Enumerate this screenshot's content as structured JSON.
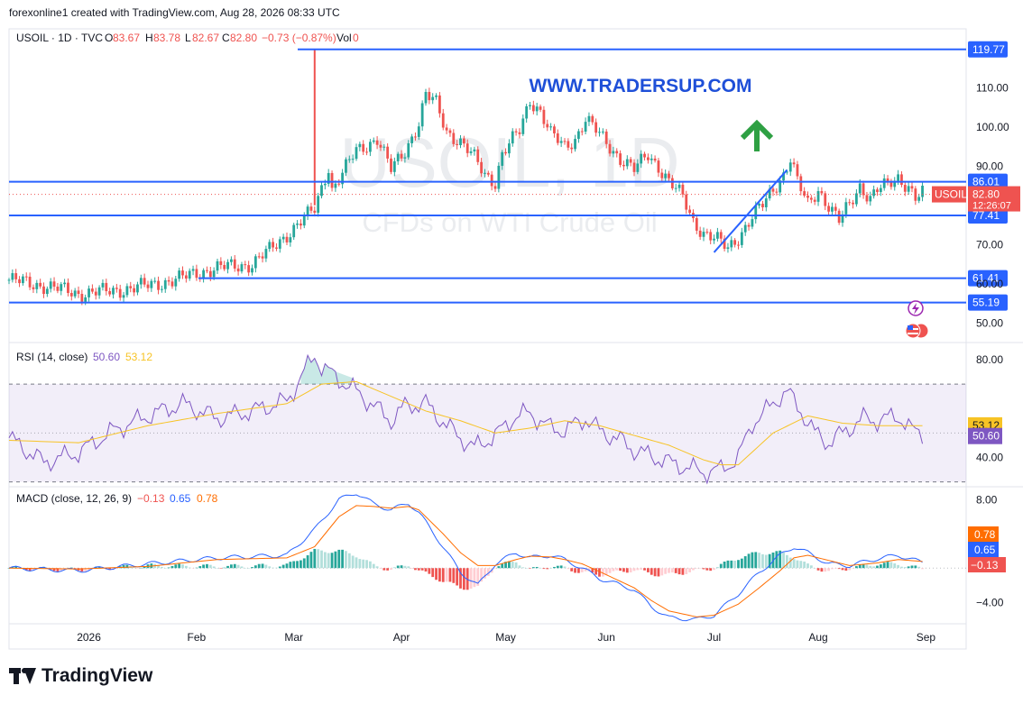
{
  "header": {
    "text": "forexonline1 created with TradingView.com, Aug 28, 2026 08:33 UTC"
  },
  "legend": {
    "symbol": "USOIL · 1D · TVC",
    "o_label": "O",
    "o": "83.67",
    "h_label": "H",
    "h": "83.78",
    "l_label": "L",
    "l": "82.67",
    "c_label": "C",
    "c": "82.80",
    "change": "−0.73 (−0.87%)",
    "vol_label": "Vol",
    "vol": "0"
  },
  "watermark": {
    "symbol": "USOIL, 1D",
    "description": "CFDs on WTI Crude Oil"
  },
  "annotation": {
    "text": "WWW.TRADERSUP.COM"
  },
  "colors": {
    "up": "#26a69a",
    "down": "#ef5350",
    "line": "#2962ff",
    "annotation": "#1e4fd8",
    "arrow": "#2ea043",
    "rsi": "#7e57c2",
    "rsi_ma": "#f7c325",
    "macd": "#2962ff",
    "signal": "#ff6d00"
  },
  "chart_data": [
    {
      "type": "candlestick",
      "title": "USOIL · 1D · TVC",
      "ylim": [
        45,
        125
      ],
      "y_ticks": [
        "110.00",
        "100.00",
        "90.00",
        "70.00",
        "60.00",
        "50.00"
      ],
      "x_ticks": [
        "2026",
        "Feb",
        "Mar",
        "Apr",
        "May",
        "Jun",
        "Jul",
        "Aug",
        "Sep"
      ],
      "close_path": [
        [
          0,
          61
        ],
        [
          10,
          59.5
        ],
        [
          20,
          57.5
        ],
        [
          30,
          58.2
        ],
        [
          40,
          59.5
        ],
        [
          50,
          61.5
        ],
        [
          55,
          63
        ],
        [
          60,
          64
        ],
        [
          70,
          65
        ],
        [
          75,
          68.5
        ],
        [
          88,
          79
        ],
        [
          92,
          90
        ],
        [
          93,
          84
        ],
        [
          96,
          88
        ],
        [
          100,
          94
        ],
        [
          106,
          97
        ],
        [
          110,
          89
        ],
        [
          114,
          94
        ],
        [
          118,
          101
        ],
        [
          120,
          108
        ],
        [
          123,
          106
        ],
        [
          126,
          99
        ],
        [
          130,
          96
        ],
        [
          134,
          92
        ],
        [
          137,
          88
        ],
        [
          140,
          86
        ],
        [
          142,
          93
        ],
        [
          147,
          99
        ],
        [
          150,
          107
        ],
        [
          153,
          104
        ],
        [
          156,
          98
        ],
        [
          160,
          95
        ],
        [
          163,
          97
        ],
        [
          166,
          102
        ],
        [
          170,
          98
        ],
        [
          173,
          95
        ],
        [
          176,
          92
        ],
        [
          180,
          89
        ],
        [
          184,
          93
        ],
        [
          187,
          90
        ],
        [
          190,
          86
        ],
        [
          194,
          82
        ],
        [
          197,
          76
        ],
        [
          200,
          73
        ],
        [
          204,
          71
        ],
        [
          207,
          69
        ],
        [
          210,
          72
        ],
        [
          214,
          77
        ],
        [
          217,
          80
        ],
        [
          220,
          84
        ],
        [
          223,
          88
        ],
        [
          225,
          92
        ],
        [
          227,
          86
        ],
        [
          230,
          80
        ],
        [
          233,
          84
        ],
        [
          236,
          80
        ],
        [
          239,
          76
        ],
        [
          242,
          80
        ],
        [
          245,
          85
        ],
        [
          248,
          82
        ],
        [
          250,
          84
        ],
        [
          253,
          85
        ],
        [
          256,
          87
        ],
        [
          259,
          85
        ],
        [
          261,
          82
        ],
        [
          263,
          83
        ]
      ],
      "last_price": "82.80",
      "countdown": "12:26:07",
      "symbol_label": "USOIL",
      "horizontal_levels": [
        {
          "price": 119.77,
          "label": "119.77"
        },
        {
          "price": 86.01,
          "label": "86.01"
        },
        {
          "price": 77.41,
          "label": "77.41"
        },
        {
          "price": 61.41,
          "label": "61.41"
        },
        {
          "price": 55.19,
          "label": "55.19"
        }
      ],
      "trendline": {
        "from": [
          203,
          68
        ],
        "to": [
          224,
          89
        ]
      }
    },
    {
      "type": "line",
      "title": "RSI (14, close)",
      "ylim": [
        28,
        87
      ],
      "y_ticks": [
        "80.00",
        "40.00"
      ],
      "bands": [
        30,
        50,
        70
      ],
      "series": [
        {
          "name": "RSI",
          "value_label": "50.60",
          "points": [
            [
              0,
              48
            ],
            [
              10,
              38
            ],
            [
              20,
              42
            ],
            [
              30,
              51
            ],
            [
              40,
              57
            ],
            [
              50,
              62
            ],
            [
              60,
              56
            ],
            [
              70,
              59
            ],
            [
              80,
              63
            ],
            [
              88,
              82
            ],
            [
              90,
              77
            ],
            [
              96,
              71
            ],
            [
              100,
              67
            ],
            [
              106,
              60
            ],
            [
              110,
              55
            ],
            [
              114,
              61
            ],
            [
              120,
              62
            ],
            [
              126,
              53
            ],
            [
              130,
              48
            ],
            [
              134,
              44
            ],
            [
              140,
              49
            ],
            [
              146,
              57
            ],
            [
              150,
              58
            ],
            [
              156,
              52
            ],
            [
              160,
              51
            ],
            [
              166,
              56
            ],
            [
              170,
              51
            ],
            [
              176,
              47
            ],
            [
              180,
              43
            ],
            [
              186,
              40
            ],
            [
              190,
              38
            ],
            [
              195,
              36
            ],
            [
              200,
              34
            ],
            [
              205,
              35
            ],
            [
              210,
              40
            ],
            [
              214,
              54
            ],
            [
              218,
              59
            ],
            [
              222,
              65
            ],
            [
              224,
              67
            ],
            [
              228,
              59
            ],
            [
              232,
              50
            ],
            [
              236,
              46
            ],
            [
              242,
              52
            ],
            [
              246,
              56
            ],
            [
              250,
              55
            ],
            [
              256,
              57
            ],
            [
              260,
              51
            ],
            [
              263,
              50
            ]
          ]
        },
        {
          "name": "RSI-based MA",
          "value_label": "53.12",
          "points": [
            [
              0,
              47
            ],
            [
              20,
              46
            ],
            [
              40,
              53
            ],
            [
              60,
              58
            ],
            [
              80,
              62
            ],
            [
              90,
              70
            ],
            [
              100,
              71
            ],
            [
              110,
              65
            ],
            [
              120,
              59
            ],
            [
              130,
              55
            ],
            [
              140,
              50
            ],
            [
              150,
              52
            ],
            [
              160,
              55
            ],
            [
              170,
              53
            ],
            [
              180,
              49
            ],
            [
              190,
              45
            ],
            [
              200,
              39
            ],
            [
              205,
              37
            ],
            [
              210,
              37
            ],
            [
              220,
              50
            ],
            [
              230,
              57
            ],
            [
              240,
              54
            ],
            [
              250,
              53
            ],
            [
              263,
              53
            ]
          ]
        }
      ]
    },
    {
      "type": "line",
      "title": "MACD (close, 12, 26, 9)",
      "ylim": [
        -6.5,
        9.5
      ],
      "y_ticks": [
        "8.00",
        "−4.00"
      ],
      "series": [
        {
          "name": "MACD",
          "value_label": "0.65",
          "points": [
            [
              0,
              0
            ],
            [
              20,
              -0.3
            ],
            [
              40,
              0.5
            ],
            [
              60,
              1.2
            ],
            [
              80,
              1.5
            ],
            [
              88,
              4.5
            ],
            [
              95,
              8
            ],
            [
              100,
              8.8
            ],
            [
              105,
              7.5
            ],
            [
              110,
              6.8
            ],
            [
              115,
              7.6
            ],
            [
              118,
              6.5
            ],
            [
              125,
              2.5
            ],
            [
              130,
              -0.5
            ],
            [
              135,
              -2
            ],
            [
              140,
              0.5
            ],
            [
              146,
              1.8
            ],
            [
              150,
              1.2
            ],
            [
              156,
              1.5
            ],
            [
              160,
              1
            ],
            [
              165,
              0
            ],
            [
              170,
              -1.2
            ],
            [
              180,
              -2.5
            ],
            [
              185,
              -4.5
            ],
            [
              190,
              -5.8
            ],
            [
              198,
              -6
            ],
            [
              203,
              -5.5
            ],
            [
              210,
              -3
            ],
            [
              216,
              -0.5
            ],
            [
              222,
              1.5
            ],
            [
              226,
              2.5
            ],
            [
              230,
              1.8
            ],
            [
              236,
              0.5
            ],
            [
              242,
              0.3
            ],
            [
              250,
              1.1
            ],
            [
              256,
              1.5
            ],
            [
              263,
              0.65
            ]
          ]
        },
        {
          "name": "Signal",
          "value_label": "0.78",
          "points": [
            [
              0,
              0
            ],
            [
              20,
              -0.1
            ],
            [
              40,
              0.2
            ],
            [
              60,
              1
            ],
            [
              80,
              1.2
            ],
            [
              88,
              2.5
            ],
            [
              95,
              6
            ],
            [
              100,
              7.3
            ],
            [
              105,
              7.2
            ],
            [
              110,
              7
            ],
            [
              115,
              7.2
            ],
            [
              118,
              6.8
            ],
            [
              125,
              4
            ],
            [
              130,
              1.8
            ],
            [
              135,
              0.3
            ],
            [
              140,
              0.3
            ],
            [
              146,
              1
            ],
            [
              150,
              1.4
            ],
            [
              156,
              1.3
            ],
            [
              160,
              1
            ],
            [
              165,
              0.5
            ],
            [
              170,
              -0.4
            ],
            [
              180,
              -2.3
            ],
            [
              185,
              -3.8
            ],
            [
              190,
              -5
            ],
            [
              198,
              -5.7
            ],
            [
              203,
              -5.5
            ],
            [
              210,
              -4.2
            ],
            [
              216,
              -2.3
            ],
            [
              222,
              -0.3
            ],
            [
              226,
              1.2
            ],
            [
              230,
              1.5
            ],
            [
              236,
              0.9
            ],
            [
              242,
              0.3
            ],
            [
              250,
              0.6
            ],
            [
              256,
              1
            ],
            [
              263,
              0.78
            ]
          ]
        }
      ],
      "histogram_label": "−0.13"
    }
  ]
}
